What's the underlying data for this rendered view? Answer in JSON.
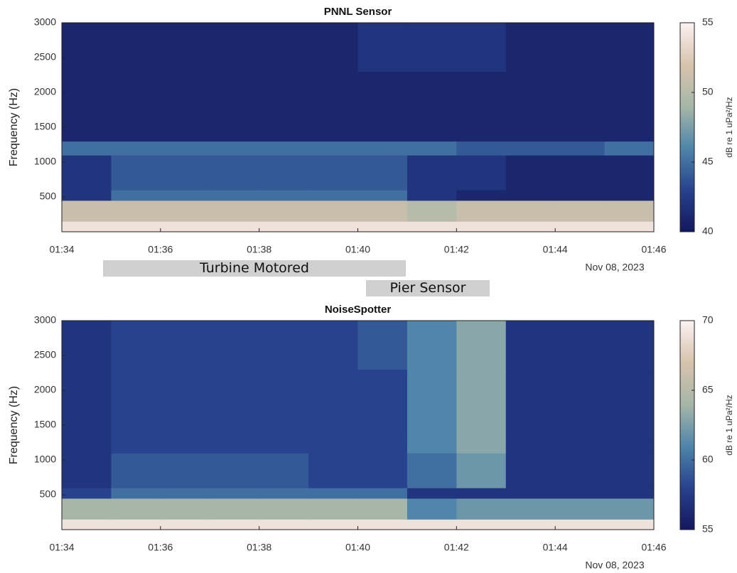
{
  "chart_data": [
    {
      "type": "heatmap",
      "title": "PNNL Sensor",
      "ylabel": "Frequency (Hz)",
      "colorbar_label": "dB re 1 uPa²/Hz",
      "date_label": "Nov 08, 2023",
      "xlim": [
        "01:34",
        "01:46"
      ],
      "xticks": [
        "01:34",
        "01:36",
        "01:38",
        "01:40",
        "01:42",
        "01:44",
        "01:46"
      ],
      "x_edges": [
        "01:34",
        "01:35",
        "01:36",
        "01:37",
        "01:38",
        "01:39",
        "01:40",
        "01:41",
        "01:42",
        "01:43",
        "01:44",
        "01:45",
        "01:46"
      ],
      "ylim": [
        0,
        3000
      ],
      "yticks": [
        500,
        1000,
        1500,
        2000,
        2500,
        3000
      ],
      "y_edges": [
        0,
        150,
        450,
        600,
        1100,
        1300,
        2300,
        3000
      ],
      "z": [
        [
          54,
          54,
          54,
          54,
          54,
          54,
          54,
          54,
          54,
          54,
          54,
          54
        ],
        [
          51,
          51,
          51,
          51,
          51,
          51,
          51,
          50,
          51,
          51,
          51,
          51
        ],
        [
          42,
          45,
          45,
          45,
          45,
          45,
          45,
          42,
          41,
          41,
          41,
          41
        ],
        [
          42,
          44,
          44,
          44,
          44,
          44,
          44,
          42,
          42,
          41,
          41,
          41
        ],
        [
          45,
          45,
          45,
          45,
          45,
          45,
          45,
          45,
          44,
          44,
          44,
          45
        ],
        [
          41,
          41,
          41,
          41,
          41,
          41,
          41,
          41,
          41,
          41,
          41,
          41
        ],
        [
          41,
          41,
          41,
          41,
          41,
          41,
          42,
          42,
          42,
          41,
          41,
          41
        ]
      ],
      "clim": [
        40,
        55
      ],
      "cticks": [
        40,
        45,
        50,
        55
      ],
      "colormap": [
        "#14185e",
        "#27428e",
        "#4f86aa",
        "#a6b7a8",
        "#d8c3ad",
        "#fbf2f2"
      ]
    },
    {
      "type": "heatmap",
      "title": "NoiseSpotter",
      "ylabel": "Frequency (Hz)",
      "colorbar_label": "dB re 1 uPa²/Hz",
      "date_label": "Nov 08, 2023",
      "xlim": [
        "01:34",
        "01:46"
      ],
      "xticks": [
        "01:34",
        "01:36",
        "01:38",
        "01:40",
        "01:42",
        "01:44",
        "01:46"
      ],
      "x_edges": [
        "01:34",
        "01:35",
        "01:36",
        "01:37",
        "01:38",
        "01:39",
        "01:40",
        "01:41",
        "01:42",
        "01:43",
        "01:44",
        "01:45",
        "01:46"
      ],
      "ylim": [
        0,
        3000
      ],
      "yticks": [
        500,
        1000,
        1500,
        2000,
        2500,
        3000
      ],
      "y_edges": [
        0,
        150,
        450,
        600,
        1100,
        1300,
        2300,
        3000
      ],
      "z": [
        [
          69,
          69,
          69,
          69,
          69,
          69,
          69,
          69,
          69,
          69,
          69,
          69
        ],
        [
          64,
          64,
          64,
          64,
          64,
          64,
          64,
          61,
          62,
          62,
          62,
          62
        ],
        [
          58,
          60,
          60,
          60,
          60,
          60,
          60,
          57,
          57,
          57,
          57,
          57
        ],
        [
          57,
          59,
          59,
          59,
          59,
          58,
          58,
          60,
          62,
          57,
          57,
          57
        ],
        [
          57,
          58,
          58,
          58,
          58,
          58,
          58,
          61,
          63,
          57,
          57,
          57
        ],
        [
          57,
          58,
          58,
          58,
          58,
          58,
          58,
          61,
          63,
          57,
          57,
          57
        ],
        [
          57,
          58,
          58,
          58,
          58,
          58,
          59,
          61,
          63,
          57,
          57,
          57
        ]
      ],
      "clim": [
        55,
        70
      ],
      "cticks": [
        55,
        60,
        65,
        70
      ],
      "colormap": [
        "#14185e",
        "#27428e",
        "#4f86aa",
        "#a6b7a8",
        "#d8c3ad",
        "#fbf2f2"
      ]
    }
  ],
  "annotations": [
    "Turbine Motored",
    "Pier Sensor"
  ]
}
